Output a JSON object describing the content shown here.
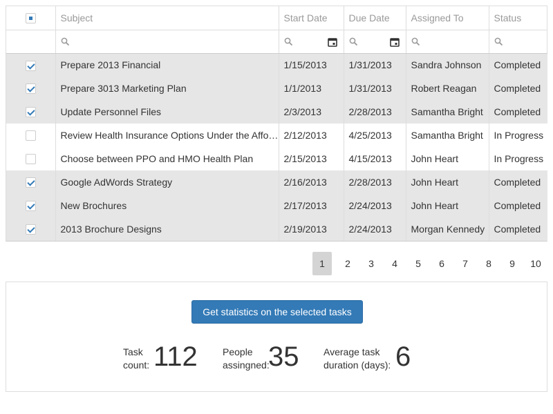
{
  "columns": [
    "Subject",
    "Start Date",
    "Due Date",
    "Assigned To",
    "Status"
  ],
  "rows": [
    {
      "selected": true,
      "subject": "Prepare 2013 Financial",
      "start": "1/15/2013",
      "due": "1/31/2013",
      "assigned": "Sandra Johnson",
      "status": "Completed"
    },
    {
      "selected": true,
      "subject": "Prepare 3013 Marketing Plan",
      "start": "1/1/2013",
      "due": "1/31/2013",
      "assigned": "Robert Reagan",
      "status": "Completed"
    },
    {
      "selected": true,
      "subject": "Update Personnel Files",
      "start": "2/3/2013",
      "due": "2/28/2013",
      "assigned": "Samantha Bright",
      "status": "Completed"
    },
    {
      "selected": false,
      "subject": "Review Health Insurance Options Under the Affordable Care Act",
      "start": "2/12/2013",
      "due": "4/25/2013",
      "assigned": "Samantha Bright",
      "status": "In Progress"
    },
    {
      "selected": false,
      "subject": "Choose between PPO and HMO Health Plan",
      "start": "2/15/2013",
      "due": "4/15/2013",
      "assigned": "John Heart",
      "status": "In Progress"
    },
    {
      "selected": true,
      "subject": "Google AdWords Strategy",
      "start": "2/16/2013",
      "due": "2/28/2013",
      "assigned": "John Heart",
      "status": "Completed"
    },
    {
      "selected": true,
      "subject": "New Brochures",
      "start": "2/17/2013",
      "due": "2/24/2013",
      "assigned": "John Heart",
      "status": "Completed"
    },
    {
      "selected": true,
      "subject": "2013 Brochure Designs",
      "start": "2/19/2013",
      "due": "2/24/2013",
      "assigned": "Morgan Kennedy",
      "status": "Completed"
    }
  ],
  "pager": {
    "pages": [
      "1",
      "2",
      "3",
      "4",
      "5",
      "6",
      "7",
      "8",
      "9",
      "10"
    ],
    "current": "1"
  },
  "stats": {
    "button_label": "Get statistics on the selected tasks",
    "task_count_label": "Task count:",
    "task_count_value": "112",
    "people_label": "People assingned:",
    "people_value": "35",
    "avg_label": "Average task duration (days):",
    "avg_value": "6"
  },
  "colors": {
    "accent": "#337ab7",
    "selected_row": "#e6e6e6",
    "active_page": "#d4d4d4"
  },
  "icons": {
    "filter": "search-icon",
    "date_picker": "calendar-icon"
  }
}
